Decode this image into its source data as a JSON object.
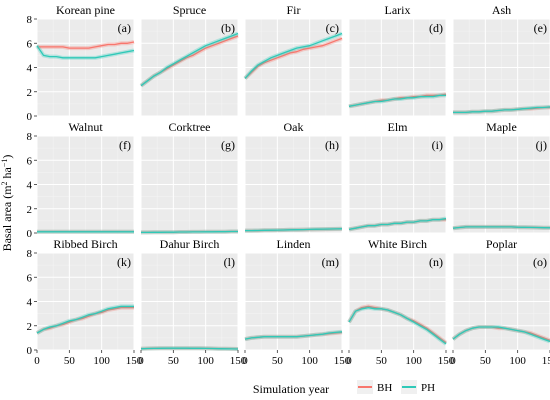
{
  "chart_data": {
    "type": "line",
    "xlabel": "Simulation year",
    "ylabel": "Basal area (m² ha⁻¹)",
    "ylabel_parts": {
      "main": "Basal area (m",
      "sup1": "2",
      "mid": " ha",
      "sup2": "−1",
      "end": ")"
    },
    "xlim": [
      0,
      150
    ],
    "ylim": [
      0,
      8
    ],
    "xticks": [
      0,
      50,
      100,
      150
    ],
    "yticks": [
      0,
      2,
      4,
      6,
      8
    ],
    "grid": true,
    "legend_position": "bottom-right",
    "x": [
      0,
      10,
      20,
      30,
      40,
      50,
      60,
      70,
      80,
      90,
      100,
      110,
      120,
      130,
      140,
      150
    ],
    "series_defs": [
      {
        "name": "BH",
        "color": "#f8766d"
      },
      {
        "name": "PH",
        "color": "#2fc9b8"
      }
    ],
    "panels": [
      {
        "title": "Korean pine",
        "letter": "(a)",
        "series": [
          {
            "name": "BH",
            "values": [
              5.7,
              5.7,
              5.7,
              5.7,
              5.7,
              5.6,
              5.6,
              5.6,
              5.6,
              5.7,
              5.8,
              5.9,
              5.9,
              6.0,
              6.0,
              6.1
            ]
          },
          {
            "name": "PH",
            "values": [
              5.8,
              5.0,
              4.9,
              4.9,
              4.8,
              4.8,
              4.8,
              4.8,
              4.8,
              4.8,
              4.9,
              5.0,
              5.1,
              5.2,
              5.3,
              5.4
            ]
          }
        ]
      },
      {
        "title": "Spruce",
        "letter": "(b)",
        "series": [
          {
            "name": "BH",
            "values": [
              2.5,
              2.9,
              3.3,
              3.6,
              3.9,
              4.2,
              4.5,
              4.8,
              5.0,
              5.3,
              5.6,
              5.8,
              6.0,
              6.2,
              6.4,
              6.6
            ]
          },
          {
            "name": "PH",
            "values": [
              2.5,
              2.9,
              3.3,
              3.6,
              4.0,
              4.3,
              4.6,
              4.9,
              5.2,
              5.5,
              5.8,
              6.0,
              6.2,
              6.4,
              6.6,
              6.8
            ]
          }
        ]
      },
      {
        "title": "Fir",
        "letter": "(c)",
        "series": [
          {
            "name": "BH",
            "values": [
              3.1,
              3.6,
              4.1,
              4.4,
              4.6,
              4.8,
              5.0,
              5.2,
              5.3,
              5.5,
              5.6,
              5.7,
              5.8,
              6.0,
              6.2,
              6.4
            ]
          },
          {
            "name": "PH",
            "values": [
              3.1,
              3.7,
              4.2,
              4.5,
              4.8,
              5.0,
              5.2,
              5.4,
              5.6,
              5.7,
              5.8,
              6.0,
              6.2,
              6.4,
              6.6,
              6.8
            ]
          }
        ]
      },
      {
        "title": "Larix",
        "letter": "(d)",
        "series": [
          {
            "name": "BH",
            "values": [
              0.8,
              0.9,
              1.0,
              1.1,
              1.2,
              1.3,
              1.3,
              1.4,
              1.5,
              1.5,
              1.6,
              1.6,
              1.7,
              1.7,
              1.7,
              1.8
            ]
          },
          {
            "name": "PH",
            "values": [
              0.8,
              0.9,
              1.0,
              1.1,
              1.2,
              1.2,
              1.3,
              1.4,
              1.4,
              1.5,
              1.5,
              1.6,
              1.6,
              1.6,
              1.7,
              1.7
            ]
          }
        ]
      },
      {
        "title": "Ash",
        "letter": "(e)",
        "series": [
          {
            "name": "BH",
            "values": [
              0.3,
              0.3,
              0.3,
              0.35,
              0.35,
              0.4,
              0.4,
              0.45,
              0.5,
              0.5,
              0.55,
              0.6,
              0.6,
              0.65,
              0.7,
              0.7
            ]
          },
          {
            "name": "PH",
            "values": [
              0.3,
              0.3,
              0.3,
              0.35,
              0.35,
              0.4,
              0.4,
              0.45,
              0.5,
              0.5,
              0.55,
              0.6,
              0.65,
              0.7,
              0.7,
              0.75
            ]
          }
        ]
      },
      {
        "title": "Walnut",
        "letter": "(f)",
        "series": [
          {
            "name": "BH",
            "values": [
              0.1,
              0.1,
              0.1,
              0.1,
              0.1,
              0.1,
              0.1,
              0.1,
              0.1,
              0.1,
              0.1,
              0.1,
              0.1,
              0.1,
              0.1,
              0.1
            ]
          },
          {
            "name": "PH",
            "values": [
              0.1,
              0.1,
              0.1,
              0.1,
              0.1,
              0.1,
              0.1,
              0.1,
              0.1,
              0.1,
              0.1,
              0.1,
              0.1,
              0.1,
              0.1,
              0.1
            ]
          }
        ]
      },
      {
        "title": "Corktree",
        "letter": "(g)",
        "series": [
          {
            "name": "BH",
            "values": [
              0.05,
              0.05,
              0.06,
              0.06,
              0.07,
              0.07,
              0.08,
              0.08,
              0.09,
              0.09,
              0.1,
              0.1,
              0.11,
              0.11,
              0.12,
              0.12
            ]
          },
          {
            "name": "PH",
            "values": [
              0.05,
              0.05,
              0.06,
              0.06,
              0.07,
              0.07,
              0.08,
              0.08,
              0.09,
              0.09,
              0.1,
              0.1,
              0.11,
              0.11,
              0.12,
              0.12
            ]
          }
        ]
      },
      {
        "title": "Oak",
        "letter": "(h)",
        "series": [
          {
            "name": "BH",
            "values": [
              0.2,
              0.2,
              0.2,
              0.22,
              0.22,
              0.24,
              0.25,
              0.26,
              0.27,
              0.28,
              0.29,
              0.3,
              0.31,
              0.32,
              0.33,
              0.34
            ]
          },
          {
            "name": "PH",
            "values": [
              0.2,
              0.2,
              0.21,
              0.22,
              0.23,
              0.24,
              0.25,
              0.26,
              0.27,
              0.28,
              0.3,
              0.31,
              0.32,
              0.33,
              0.34,
              0.35
            ]
          }
        ]
      },
      {
        "title": "Elm",
        "letter": "(i)",
        "series": [
          {
            "name": "BH",
            "values": [
              0.3,
              0.4,
              0.5,
              0.6,
              0.6,
              0.7,
              0.7,
              0.8,
              0.8,
              0.9,
              0.9,
              1.0,
              1.0,
              1.1,
              1.1,
              1.1
            ]
          },
          {
            "name": "PH",
            "values": [
              0.3,
              0.4,
              0.5,
              0.6,
              0.6,
              0.7,
              0.7,
              0.8,
              0.8,
              0.9,
              0.9,
              1.0,
              1.0,
              1.1,
              1.1,
              1.2
            ]
          }
        ]
      },
      {
        "title": "Maple",
        "letter": "(j)",
        "series": [
          {
            "name": "BH",
            "values": [
              0.4,
              0.45,
              0.5,
              0.5,
              0.5,
              0.5,
              0.5,
              0.5,
              0.5,
              0.5,
              0.48,
              0.47,
              0.46,
              0.45,
              0.44,
              0.43
            ]
          },
          {
            "name": "PH",
            "values": [
              0.4,
              0.45,
              0.5,
              0.5,
              0.5,
              0.5,
              0.5,
              0.5,
              0.5,
              0.5,
              0.48,
              0.47,
              0.46,
              0.45,
              0.44,
              0.43
            ]
          }
        ]
      },
      {
        "title": "Ribbed Birch",
        "letter": "(k)",
        "series": [
          {
            "name": "BH",
            "values": [
              1.4,
              1.7,
              1.8,
              2.0,
              2.1,
              2.3,
              2.5,
              2.6,
              2.8,
              3.0,
              3.1,
              3.3,
              3.4,
              3.5,
              3.5,
              3.5
            ]
          },
          {
            "name": "PH",
            "values": [
              1.4,
              1.7,
              1.9,
              2.0,
              2.2,
              2.4,
              2.5,
              2.7,
              2.9,
              3.0,
              3.2,
              3.4,
              3.5,
              3.6,
              3.6,
              3.6
            ]
          }
        ]
      },
      {
        "title": "Dahur Birch",
        "letter": "(l)",
        "series": [
          {
            "name": "BH",
            "values": [
              0.1,
              0.12,
              0.13,
              0.14,
              0.15,
              0.15,
              0.15,
              0.15,
              0.14,
              0.14,
              0.13,
              0.12,
              0.11,
              0.1,
              0.09,
              0.08
            ]
          },
          {
            "name": "PH",
            "values": [
              0.1,
              0.12,
              0.13,
              0.14,
              0.15,
              0.15,
              0.15,
              0.15,
              0.14,
              0.14,
              0.13,
              0.12,
              0.11,
              0.1,
              0.09,
              0.08
            ]
          }
        ]
      },
      {
        "title": "Linden",
        "letter": "(m)",
        "series": [
          {
            "name": "BH",
            "values": [
              0.9,
              1.0,
              1.05,
              1.1,
              1.1,
              1.1,
              1.1,
              1.1,
              1.1,
              1.15,
              1.2,
              1.25,
              1.3,
              1.35,
              1.4,
              1.45
            ]
          },
          {
            "name": "PH",
            "values": [
              0.9,
              1.0,
              1.05,
              1.1,
              1.1,
              1.1,
              1.1,
              1.1,
              1.1,
              1.15,
              1.2,
              1.25,
              1.3,
              1.4,
              1.45,
              1.5
            ]
          }
        ]
      },
      {
        "title": "White Birch",
        "letter": "(n)",
        "series": [
          {
            "name": "BH",
            "values": [
              2.3,
              3.2,
              3.5,
              3.6,
              3.5,
              3.4,
              3.3,
              3.1,
              2.9,
              2.6,
              2.4,
              2.1,
              1.8,
              1.4,
              1.0,
              0.6
            ]
          },
          {
            "name": "PH",
            "values": [
              2.3,
              3.2,
              3.4,
              3.5,
              3.4,
              3.4,
              3.3,
              3.1,
              2.9,
              2.6,
              2.3,
              2.0,
              1.7,
              1.3,
              0.9,
              0.5
            ]
          }
        ]
      },
      {
        "title": "Poplar",
        "letter": "(o)",
        "series": [
          {
            "name": "BH",
            "values": [
              0.9,
              1.3,
              1.6,
              1.8,
              1.9,
              1.9,
              1.9,
              1.8,
              1.8,
              1.7,
              1.6,
              1.5,
              1.4,
              1.2,
              1.0,
              0.8
            ]
          },
          {
            "name": "PH",
            "values": [
              0.9,
              1.3,
              1.6,
              1.8,
              1.9,
              1.9,
              1.9,
              1.9,
              1.8,
              1.7,
              1.6,
              1.5,
              1.3,
              1.1,
              0.9,
              0.7
            ]
          }
        ]
      }
    ]
  }
}
